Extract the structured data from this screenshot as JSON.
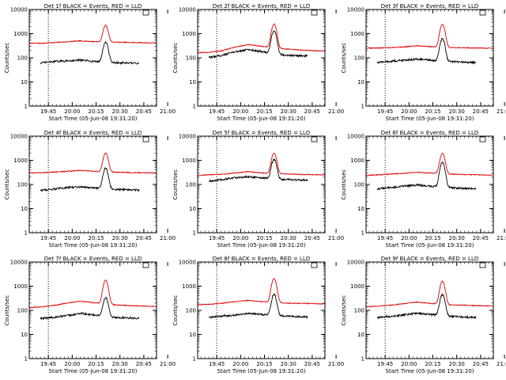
{
  "figure": {
    "background": "#ffffff"
  },
  "style": {
    "events_color": "#000000",
    "lld_color": "#e00000",
    "frame_color": "#000000"
  },
  "chart_data": [
    {
      "type": "line",
      "title": "Det 1f BLACK = Events, RED = LLD",
      "xlabel": "Start Time (05-Jun-08 19:31:20)",
      "ylabel": "Counts/sec",
      "yscale": "log",
      "ylim": [
        1,
        10000
      ],
      "y_ticks": [
        "1",
        "10",
        "100",
        "1000",
        "10000"
      ],
      "x_ticks": [
        "19:45",
        "20:00",
        "20:15",
        "20:30",
        "20:45",
        "21:00"
      ],
      "xlim_min": [
        -7,
        73
      ],
      "vlines_min": [
        5,
        73
      ],
      "peak_min": 41,
      "series": [
        {
          "key": "lld",
          "color": "#e00000",
          "baseline": [
            400,
            400,
            430,
            460,
            500,
            470,
            450,
            440,
            430,
            420,
            410
          ],
          "peak": 2200
        },
        {
          "key": "events",
          "color": "#000000",
          "baseline": [
            55,
            62,
            70,
            75,
            80,
            72,
            65,
            62,
            60,
            58,
            55
          ],
          "peak": 450
        }
      ]
    },
    {
      "type": "line",
      "title": "Det 2f BLACK = Events, RED = LLD",
      "xlabel": "Start Time (05-Jun-08 19:31:20)",
      "ylabel": "Counts/sec",
      "yscale": "log",
      "ylim": [
        1,
        10000
      ],
      "y_ticks": [
        "1",
        "10",
        "100",
        "1000",
        "10000"
      ],
      "x_ticks": [
        "19:45",
        "20:00",
        "20:15",
        "20:30",
        "20:45",
        "21:00"
      ],
      "xlim_min": [
        -7,
        73
      ],
      "vlines_min": [
        5,
        73
      ],
      "peak_min": 41,
      "series": [
        {
          "key": "lld",
          "color": "#e00000",
          "baseline": [
            160,
            170,
            200,
            280,
            350,
            300,
            260,
            230,
            210,
            200,
            190
          ],
          "peak": 2500
        },
        {
          "key": "events",
          "color": "#000000",
          "baseline": [
            95,
            105,
            130,
            180,
            220,
            180,
            140,
            130,
            120,
            120,
            120
          ],
          "peak": 1300
        }
      ]
    },
    {
      "type": "line",
      "title": "Det 3f BLACK = Events, RED = LLD",
      "xlabel": "Start Time (05-Jun-08 19:31:20)",
      "ylabel": "Counts/sec",
      "yscale": "log",
      "ylim": [
        1,
        10000
      ],
      "y_ticks": [
        "1",
        "10",
        "100",
        "1000",
        "10000"
      ],
      "x_ticks": [
        "19:45",
        "20:00",
        "20:15",
        "20:30",
        "20:45",
        "21:00"
      ],
      "xlim_min": [
        -7,
        73
      ],
      "vlines_min": [
        5,
        73
      ],
      "peak_min": 41,
      "series": [
        {
          "key": "lld",
          "color": "#e00000",
          "baseline": [
            250,
            255,
            265,
            285,
            310,
            290,
            275,
            265,
            258,
            252,
            248
          ],
          "peak": 2400
        },
        {
          "key": "events",
          "color": "#000000",
          "baseline": [
            60,
            65,
            72,
            80,
            90,
            80,
            72,
            68,
            65,
            62,
            60
          ],
          "peak": 600
        }
      ]
    },
    {
      "type": "line",
      "title": "Det 4f BLACK = Events, RED = LLD",
      "xlabel": "Start Time (05-Jun-08 19:31:20)",
      "ylabel": "Counts/sec",
      "yscale": "log",
      "ylim": [
        1,
        10000
      ],
      "y_ticks": [
        "1",
        "10",
        "100",
        "1000",
        "10000"
      ],
      "x_ticks": [
        "19:45",
        "20:00",
        "20:15",
        "20:30",
        "20:45",
        "21:00"
      ],
      "xlim_min": [
        -7,
        73
      ],
      "vlines_min": [
        5,
        73
      ],
      "peak_min": 41,
      "series": [
        {
          "key": "lld",
          "color": "#e00000",
          "baseline": [
            300,
            310,
            330,
            350,
            380,
            350,
            330,
            320,
            310,
            305,
            300
          ],
          "peak": 2000
        },
        {
          "key": "events",
          "color": "#000000",
          "baseline": [
            50,
            58,
            65,
            75,
            80,
            72,
            65,
            62,
            60,
            58,
            55
          ],
          "peak": 480
        }
      ]
    },
    {
      "type": "line",
      "title": "Det 5f BLACK = Events, RED = LLD",
      "xlabel": "Start Time (05-Jun-08 19:31:20)",
      "ylabel": "Counts/sec",
      "yscale": "log",
      "ylim": [
        1,
        10000
      ],
      "y_ticks": [
        "1",
        "10",
        "100",
        "1000",
        "10000"
      ],
      "x_ticks": [
        "19:45",
        "20:00",
        "20:15",
        "20:30",
        "20:45",
        "21:00"
      ],
      "xlim_min": [
        -7,
        73
      ],
      "vlines_min": [
        5,
        73
      ],
      "peak_min": 41,
      "series": [
        {
          "key": "lld",
          "color": "#e00000",
          "baseline": [
            240,
            250,
            265,
            300,
            340,
            300,
            280,
            270,
            260,
            255,
            250
          ],
          "peak": 2000
        },
        {
          "key": "events",
          "color": "#000000",
          "baseline": [
            130,
            140,
            160,
            190,
            210,
            185,
            170,
            160,
            155,
            150,
            150
          ],
          "peak": 1100
        }
      ]
    },
    {
      "type": "line",
      "title": "Det 6f BLACK = Events, RED = LLD",
      "xlabel": "Start Time (05-Jun-08 19:31:20)",
      "ylabel": "Counts/sec",
      "yscale": "log",
      "ylim": [
        1,
        10000
      ],
      "y_ticks": [
        "1",
        "10",
        "100",
        "1000",
        "10000"
      ],
      "x_ticks": [
        "19:45",
        "20:00",
        "20:15",
        "20:30",
        "20:45",
        "21:00"
      ],
      "xlim_min": [
        -7,
        73
      ],
      "vlines_min": [
        5,
        73
      ],
      "peak_min": 41,
      "series": [
        {
          "key": "lld",
          "color": "#e00000",
          "baseline": [
            240,
            250,
            270,
            290,
            320,
            300,
            280,
            265,
            255,
            250,
            245
          ],
          "peak": 1900
        },
        {
          "key": "events",
          "color": "#000000",
          "baseline": [
            60,
            66,
            75,
            85,
            95,
            85,
            78,
            72,
            68,
            65,
            62
          ],
          "peak": 800
        }
      ]
    },
    {
      "type": "line",
      "title": "Det 7f BLACK = Events, RED = LLD",
      "xlabel": "Start Time (05-Jun-08 19:31:20)",
      "ylabel": "Counts/sec",
      "yscale": "log",
      "ylim": [
        1,
        10000
      ],
      "y_ticks": [
        "1",
        "10",
        "100",
        "1000",
        "10000"
      ],
      "x_ticks": [
        "19:45",
        "20:00",
        "20:15",
        "20:30",
        "20:45",
        "21:00"
      ],
      "xlim_min": [
        -7,
        73
      ],
      "vlines_min": [
        5,
        73
      ],
      "peak_min": 41,
      "series": [
        {
          "key": "lld",
          "color": "#e00000",
          "baseline": [
            130,
            140,
            160,
            200,
            240,
            210,
            180,
            165,
            155,
            150,
            145
          ],
          "peak": 1800
        },
        {
          "key": "events",
          "color": "#000000",
          "baseline": [
            42,
            46,
            52,
            60,
            75,
            65,
            55,
            50,
            48,
            46,
            45
          ],
          "peak": 330
        }
      ]
    },
    {
      "type": "line",
      "title": "Det 8f BLACK = Events, RED = LLD",
      "xlabel": "Start Time (05-Jun-08 19:31:20)",
      "ylabel": "Counts/sec",
      "yscale": "log",
      "ylim": [
        1,
        10000
      ],
      "y_ticks": [
        "1",
        "10",
        "100",
        "1000",
        "10000"
      ],
      "x_ticks": [
        "19:45",
        "20:00",
        "20:15",
        "20:30",
        "20:45",
        "21:00"
      ],
      "xlim_min": [
        -7,
        73
      ],
      "vlines_min": [
        5,
        73
      ],
      "peak_min": 41,
      "series": [
        {
          "key": "lld",
          "color": "#e00000",
          "baseline": [
            170,
            180,
            200,
            230,
            260,
            230,
            210,
            200,
            195,
            190,
            185
          ],
          "peak": 2100
        },
        {
          "key": "events",
          "color": "#000000",
          "baseline": [
            48,
            52,
            58,
            65,
            75,
            68,
            62,
            58,
            55,
            52,
            50
          ],
          "peak": 450
        }
      ]
    },
    {
      "type": "line",
      "title": "Det 9f BLACK = Events, RED = LLD",
      "xlabel": "Start Time (05-Jun-08 19:31:20)",
      "ylabel": "Counts/sec",
      "yscale": "log",
      "ylim": [
        1,
        10000
      ],
      "y_ticks": [
        "1",
        "10",
        "100",
        "1000",
        "10000"
      ],
      "x_ticks": [
        "19:45",
        "20:00",
        "20:15",
        "20:30",
        "20:45",
        "21:00"
      ],
      "xlim_min": [
        -7,
        73
      ],
      "vlines_min": [
        5,
        73
      ],
      "peak_min": 41,
      "series": [
        {
          "key": "lld",
          "color": "#e00000",
          "baseline": [
            140,
            150,
            165,
            190,
            220,
            195,
            175,
            165,
            160,
            155,
            150
          ],
          "peak": 1600
        },
        {
          "key": "events",
          "color": "#000000",
          "baseline": [
            45,
            50,
            58,
            65,
            75,
            68,
            60,
            55,
            52,
            50,
            48
          ],
          "peak": 450
        }
      ]
    }
  ]
}
